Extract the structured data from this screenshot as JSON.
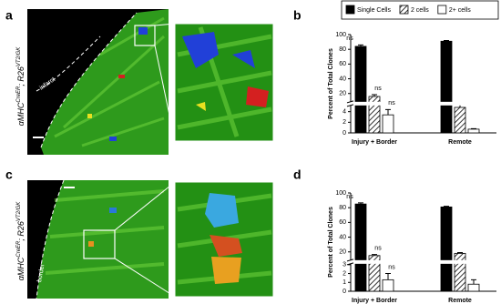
{
  "panels": [
    {
      "label": "a",
      "genotype": {
        "base1": "αMHC",
        "sup1": "CreER",
        "base2": "; R26",
        "sup2": "VT2/GK"
      },
      "region": "infarct"
    },
    {
      "label": "b"
    },
    {
      "label": "c",
      "genotype": {
        "base1": "αMHC",
        "sup1": "CreER",
        "base2": "; R26",
        "sup2": "VT2/GK"
      },
      "region": "border"
    },
    {
      "label": "d"
    }
  ],
  "chart_data": [
    {
      "type": "bar",
      "ylabel": "Percent of Total Clones",
      "categories": [
        "Injury + Border",
        "Remote"
      ],
      "series": [
        {
          "name": "Single Cells",
          "color": "#000000",
          "values": [
            84,
            91
          ],
          "errors": [
            2,
            1
          ]
        },
        {
          "name": "2 cells",
          "color": "#ffffff",
          "hatch": true,
          "values": [
            16,
            4.8
          ],
          "errors": [
            2.5,
            0.3
          ]
        },
        {
          "name": "2+ cells",
          "color": "#ffffff",
          "values": [
            3.4,
            0.7
          ],
          "errors": [
            1,
            0.1
          ]
        }
      ],
      "ylim": [
        0,
        100
      ],
      "ybreak": [
        5,
        10
      ],
      "yticks": [
        0,
        2,
        4,
        20,
        40,
        60,
        80,
        100
      ],
      "legend": "top",
      "annotations": [
        {
          "text": "ns",
          "series": 0,
          "category": 0
        },
        {
          "text": "ns",
          "series": 1,
          "category": 0
        },
        {
          "text": "ns",
          "series": 2,
          "category": 0
        }
      ]
    },
    {
      "type": "bar",
      "ylabel": "Percent of Total Clones",
      "categories": [
        "Injury + Border",
        "Remote"
      ],
      "series": [
        {
          "color": "#000000",
          "values": [
            85,
            81
          ],
          "errors": [
            1.5,
            1
          ]
        },
        {
          "color": "#ffffff",
          "hatch": true,
          "values": [
            15,
            18
          ],
          "errors": [
            1.5,
            1
          ]
        },
        {
          "color": "#ffffff",
          "values": [
            1.3,
            0.8
          ],
          "errors": [
            0.7,
            0.5
          ]
        }
      ],
      "ylim": [
        0,
        100
      ],
      "ybreak": [
        3,
        10
      ],
      "yticks": [
        0,
        1,
        2,
        3,
        20,
        40,
        60,
        80,
        100
      ],
      "annotations": [
        {
          "text": "ns",
          "series": 0,
          "category": 0
        },
        {
          "text": "ns",
          "series": 1,
          "category": 0
        },
        {
          "text": "ns",
          "series": 2,
          "category": 0
        }
      ]
    }
  ]
}
